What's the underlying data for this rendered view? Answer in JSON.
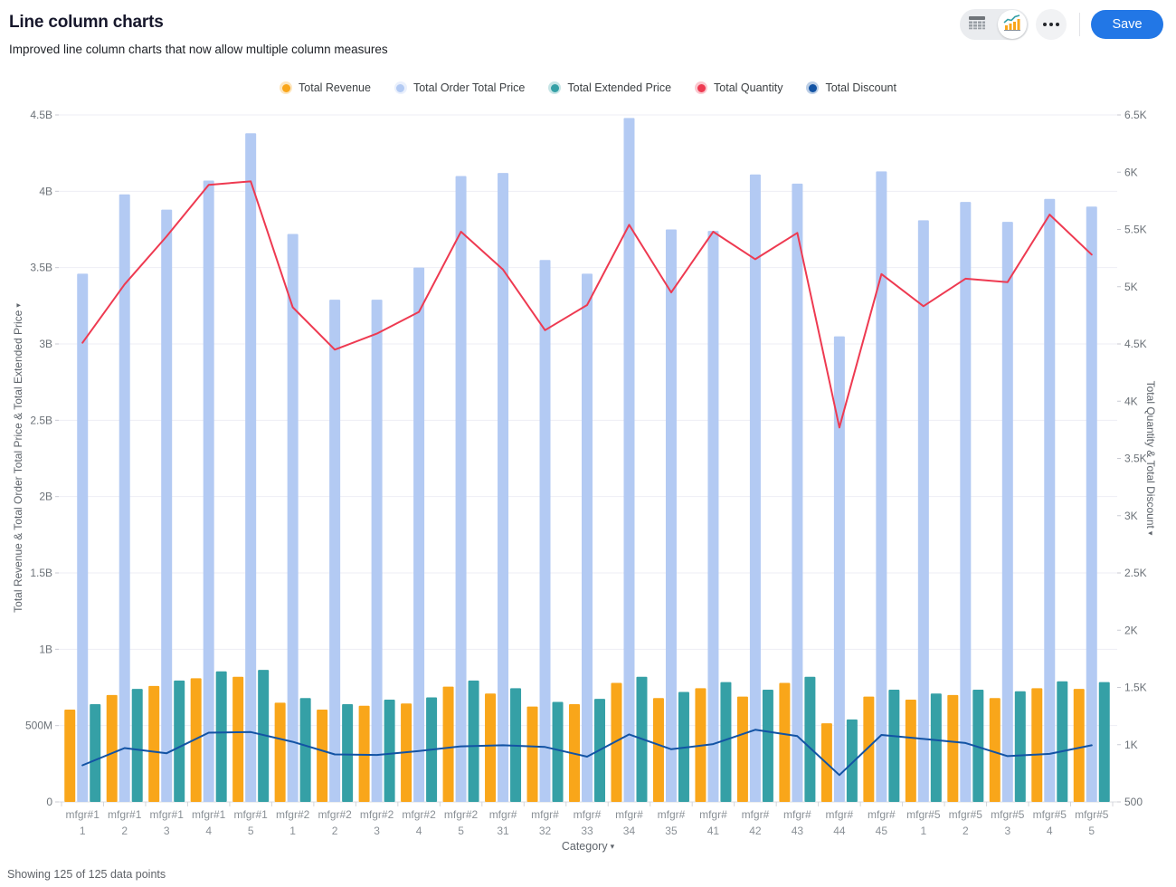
{
  "header": {
    "title": "Line column charts",
    "subtitle": "Improved line column charts that now allow multiple column measures",
    "controls": {
      "view_toggle": [
        {
          "icon": "table-icon",
          "selected": false
        },
        {
          "icon": "line-column-chart-icon",
          "selected": true
        }
      ],
      "more_icon": "more-options-icon",
      "save_label": "Save"
    }
  },
  "footer": {
    "status": "Showing 125 of 125 data points"
  },
  "chart_data": {
    "type": "line-column",
    "dropdown_arrow": "▾",
    "legend_position": "top-center",
    "grid": "horizontal",
    "categories": [
      [
        "mfgr#1",
        "1"
      ],
      [
        "mfgr#1",
        "2"
      ],
      [
        "mfgr#1",
        "3"
      ],
      [
        "mfgr#1",
        "4"
      ],
      [
        "mfgr#1",
        "5"
      ],
      [
        "mfgr#2",
        "1"
      ],
      [
        "mfgr#2",
        "2"
      ],
      [
        "mfgr#2",
        "3"
      ],
      [
        "mfgr#2",
        "4"
      ],
      [
        "mfgr#2",
        "5"
      ],
      [
        "mfgr#",
        "31"
      ],
      [
        "mfgr#",
        "32"
      ],
      [
        "mfgr#",
        "33"
      ],
      [
        "mfgr#",
        "34"
      ],
      [
        "mfgr#",
        "35"
      ],
      [
        "mfgr#",
        "41"
      ],
      [
        "mfgr#",
        "42"
      ],
      [
        "mfgr#",
        "43"
      ],
      [
        "mfgr#",
        "44"
      ],
      [
        "mfgr#",
        "45"
      ],
      [
        "mfgr#5",
        "1"
      ],
      [
        "mfgr#5",
        "2"
      ],
      [
        "mfgr#5",
        "3"
      ],
      [
        "mfgr#5",
        "4"
      ],
      [
        "mfgr#5",
        "5"
      ]
    ],
    "series": [
      {
        "name": "Total Revenue",
        "type": "column",
        "axis": "left",
        "color": "#F9A61A",
        "values": [
          605000000,
          700000000,
          760000000,
          810000000,
          820000000,
          650000000,
          605000000,
          630000000,
          645000000,
          755000000,
          710000000,
          625000000,
          640000000,
          780000000,
          680000000,
          745000000,
          690000000,
          780000000,
          515000000,
          690000000,
          670000000,
          700000000,
          680000000,
          745000000,
          740000000
        ]
      },
      {
        "name": "Total Order Total Price",
        "type": "column",
        "axis": "left",
        "color": "#B3CAF3",
        "values": [
          3460000000,
          3980000000,
          3880000000,
          4070000000,
          4380000000,
          3720000000,
          3290000000,
          3290000000,
          3500000000,
          4100000000,
          4120000000,
          3550000000,
          3460000000,
          4480000000,
          3750000000,
          3740000000,
          4110000000,
          4050000000,
          3050000000,
          4130000000,
          3810000000,
          3930000000,
          3800000000,
          3950000000,
          3900000000
        ]
      },
      {
        "name": "Total Extended Price",
        "type": "column",
        "axis": "left",
        "color": "#35A0A6",
        "values": [
          640000000,
          740000000,
          795000000,
          855000000,
          865000000,
          680000000,
          640000000,
          670000000,
          685000000,
          795000000,
          745000000,
          655000000,
          675000000,
          820000000,
          720000000,
          785000000,
          735000000,
          820000000,
          540000000,
          735000000,
          710000000,
          735000000,
          725000000,
          790000000,
          785000000
        ]
      },
      {
        "name": "Total Quantity",
        "type": "line",
        "axis": "right",
        "color": "#EE3A51",
        "values": [
          4510,
          5020,
          5440,
          5890,
          5920,
          4820,
          4450,
          4590,
          4780,
          5480,
          5150,
          4620,
          4840,
          5540,
          4950,
          5480,
          5240,
          5470,
          3770,
          5110,
          4830,
          5070,
          5040,
          5630,
          5280
        ]
      },
      {
        "name": "Total Discount",
        "type": "line",
        "axis": "right",
        "color": "#1253A4",
        "values": [
          820,
          970,
          925,
          1105,
          1110,
          1025,
          915,
          910,
          945,
          985,
          995,
          980,
          895,
          1090,
          960,
          1005,
          1130,
          1075,
          735,
          1085,
          1050,
          1015,
          900,
          920,
          995
        ]
      }
    ],
    "left_axis": {
      "title": "Total Revenue & Total Order Total Price & Total Extended Price",
      "min": 0,
      "max": 4500000000,
      "ticks": [
        "0",
        "500M",
        "1B",
        "1.5B",
        "2B",
        "2.5B",
        "3B",
        "3.5B",
        "4B",
        "4.5B"
      ]
    },
    "right_axis": {
      "title": "Total Quantity & Total Discount",
      "min": 500,
      "max": 6500,
      "ticks": [
        "500",
        "1K",
        "1.5K",
        "2K",
        "2.5K",
        "3K",
        "3.5K",
        "4K",
        "4.5K",
        "5K",
        "5.5K",
        "6K",
        "6.5K"
      ]
    },
    "x_axis": {
      "title": "Category"
    }
  }
}
